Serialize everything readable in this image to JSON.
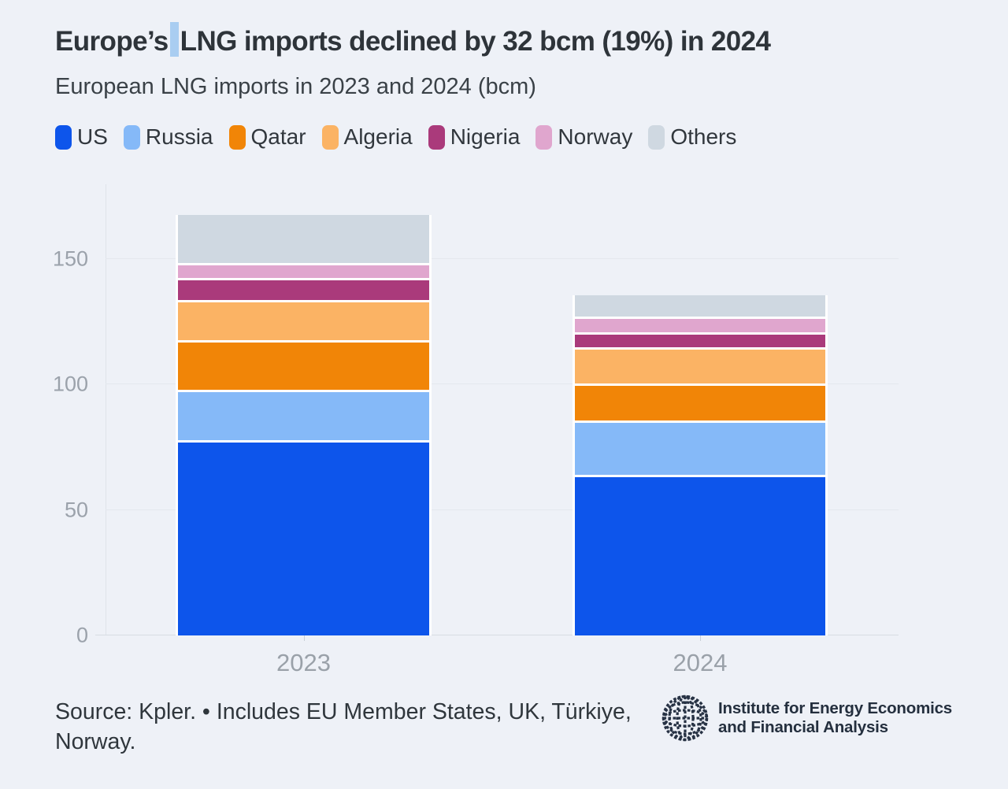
{
  "page": {
    "background": "#eef1f7"
  },
  "header": {
    "title_before_cursor": "Europe’s",
    "title_after_cursor": "LNG imports declined by 32 bcm (19%) in 2024",
    "cursor_color": "#a9cdf1",
    "subtitle": "European LNG imports in 2023 and 2024 (bcm)"
  },
  "chart_data": {
    "type": "bar",
    "stacked": true,
    "title": "Europe’s LNG imports declined by 32 bcm (19%) in 2024",
    "subtitle": "European LNG imports in 2023 and 2024 (bcm)",
    "unit": "bcm",
    "categories": [
      "2023",
      "2024"
    ],
    "series": [
      {
        "name": "US",
        "color": "#0d55eb",
        "values": [
          77.0,
          63.0
        ]
      },
      {
        "name": "Russia",
        "color": "#85b9f8",
        "values": [
          19.8,
          21.8
        ]
      },
      {
        "name": "Qatar",
        "color": "#f18507",
        "values": [
          19.8,
          14.8
        ]
      },
      {
        "name": "Algeria",
        "color": "#fbb364",
        "values": [
          16.0,
          14.2
        ]
      },
      {
        "name": "Nigeria",
        "color": "#aa3a7b",
        "values": [
          8.9,
          5.9
        ]
      },
      {
        "name": "Norway",
        "color": "#e0a6ce",
        "values": [
          6.0,
          6.3
        ]
      },
      {
        "name": "Others",
        "color": "#cfd8e1",
        "values": [
          20.0,
          9.5
        ]
      }
    ],
    "totals": {
      "2023": 167.5,
      "2024": 135.5
    },
    "ylim": [
      0,
      181
    ],
    "y_ticks": [
      0,
      50,
      100,
      150
    ],
    "grid": "horizontal",
    "legend_position": "top"
  },
  "footer": {
    "source": "Source: Kpler. • Includes EU Member States, UK, Türkiye, Norway.",
    "logo_line1": "Institute for Energy Economics",
    "logo_line2": "and Financial Analysis"
  }
}
